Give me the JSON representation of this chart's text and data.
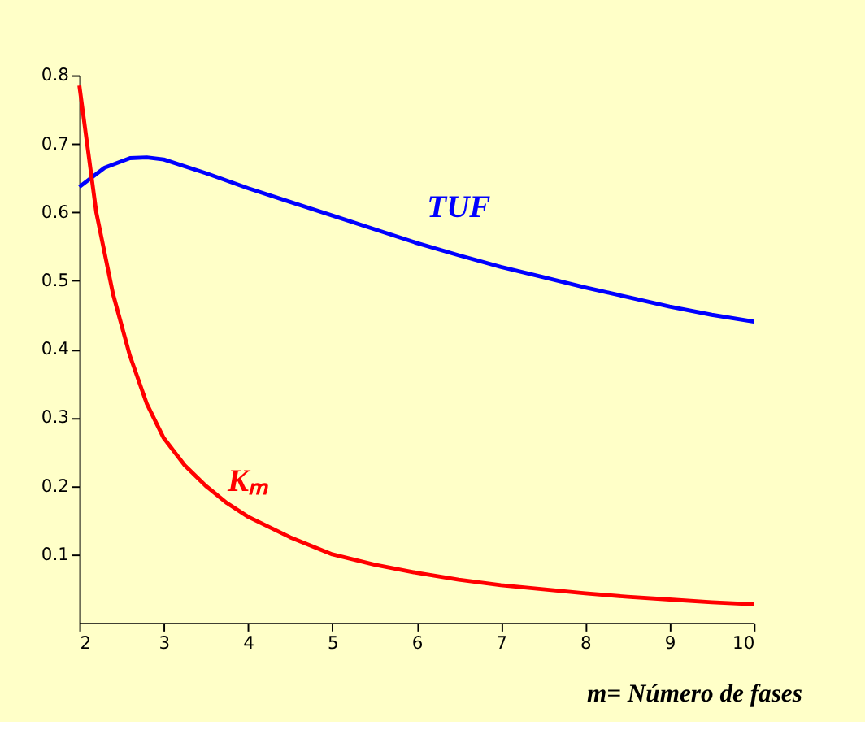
{
  "chart_data": {
    "type": "line",
    "xlabel": "m= Número de fases",
    "series": [
      {
        "name": "TUF",
        "color": "#0000ff",
        "x": [
          2,
          2.3,
          2.6,
          2.8,
          3,
          3.5,
          4,
          4.5,
          5,
          5.5,
          6,
          6.5,
          7,
          7.5,
          8,
          8.5,
          9,
          9.5,
          10
        ],
        "values": [
          0.637,
          0.665,
          0.679,
          0.68,
          0.677,
          0.657,
          0.635,
          0.615,
          0.595,
          0.575,
          0.555,
          0.537,
          0.52,
          0.505,
          0.49,
          0.476,
          0.462,
          0.45,
          0.44
        ]
      },
      {
        "name": "Kₘ",
        "color": "#ff0000",
        "x": [
          2,
          2.2,
          2.4,
          2.6,
          2.8,
          3,
          3.25,
          3.5,
          3.75,
          4,
          4.5,
          5,
          5.5,
          6,
          6.5,
          7,
          7.5,
          8,
          8.5,
          9,
          9.5,
          10
        ],
        "values": [
          0.785,
          0.6,
          0.48,
          0.39,
          0.32,
          0.27,
          0.23,
          0.2,
          0.175,
          0.155,
          0.125,
          0.1,
          0.085,
          0.073,
          0.063,
          0.055,
          0.049,
          0.043,
          0.038,
          0.034,
          0.03,
          0.027
        ]
      }
    ],
    "xlim": [
      2,
      10
    ],
    "xticks": [
      2,
      3,
      4,
      5,
      6,
      7,
      8,
      9,
      10
    ],
    "ylim": [
      0,
      0.8
    ],
    "yticks": [
      0.1,
      0.2,
      0.3,
      0.4,
      0.5,
      0.6,
      0.7,
      0.8
    ],
    "grid": false,
    "legend": false
  }
}
